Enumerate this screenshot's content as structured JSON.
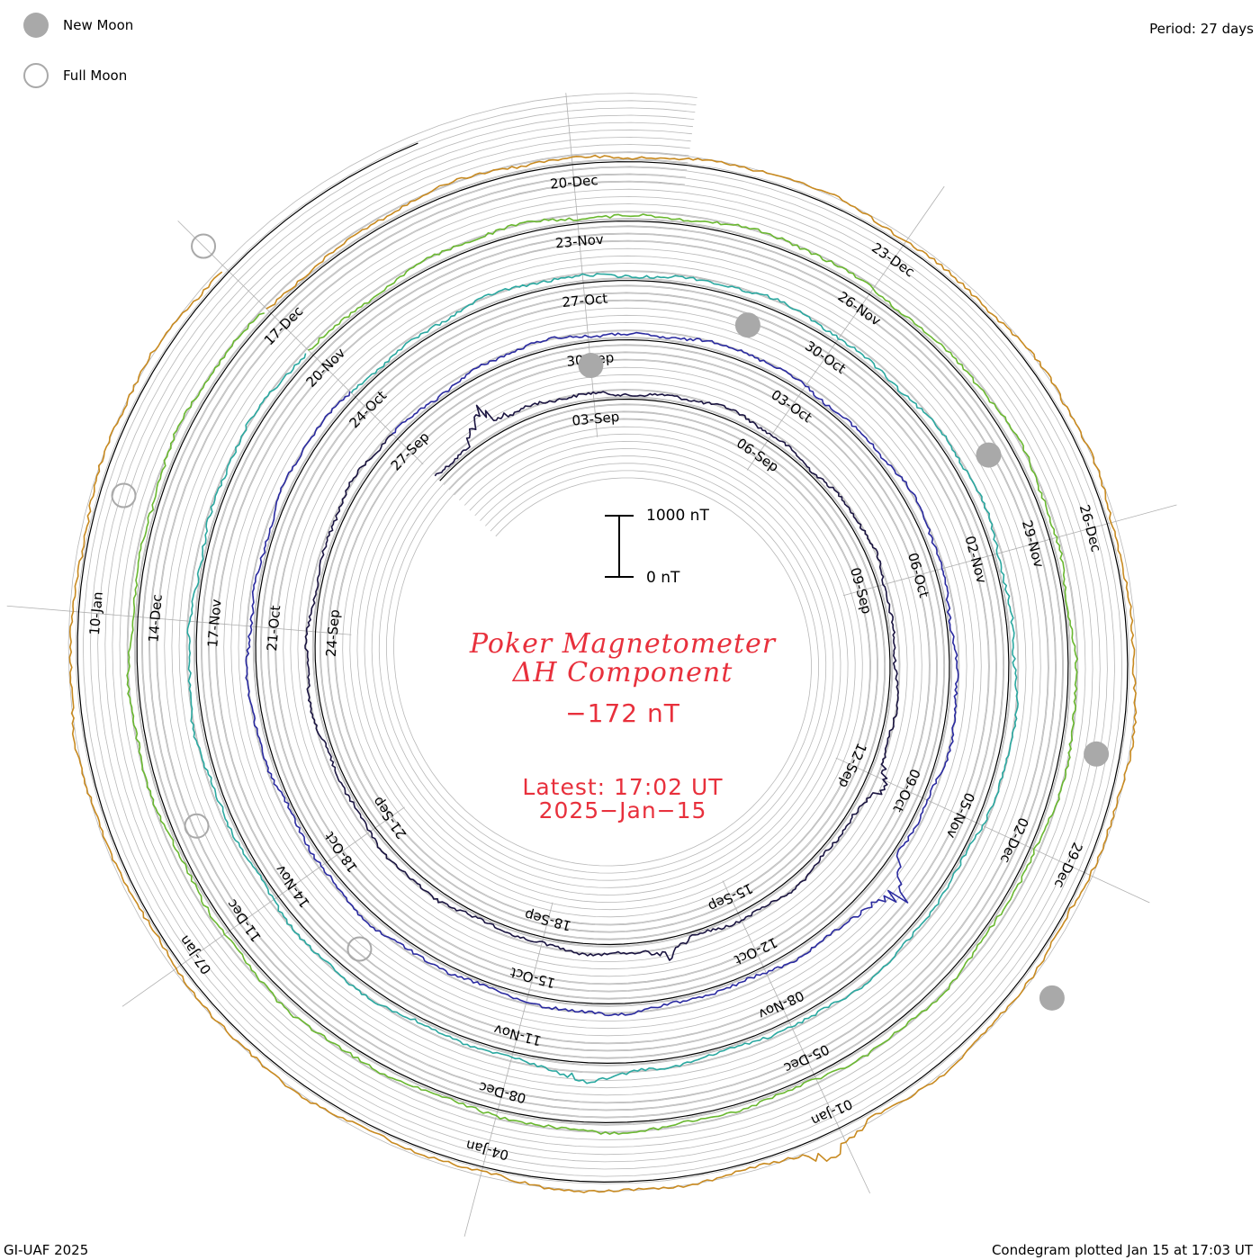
{
  "legend": {
    "new_moon_label": "New Moon",
    "full_moon_label": "Full Moon",
    "new_moon_color": "#a9a9a9",
    "full_moon_color": "#a9a9a9"
  },
  "period_label": "Period: 27 days",
  "title": {
    "line1": "Poker Magnetometer",
    "line2": "ΔH Component",
    "current_value": "−172 nT",
    "latest_label": "Latest: 17:02 UT",
    "latest_date": "2025−Jan−15"
  },
  "scale_bar": {
    "top_label": "1000 nT",
    "bottom_label": "0 nT"
  },
  "footer": {
    "left": "GI-UAF 2025",
    "right": "Condegram plotted Jan 15 at 17:03 UT"
  },
  "colors": {
    "title_red": "#e8303c",
    "grid": "#b0b0b0",
    "moon": "#a9a9a9"
  },
  "chart_data": {
    "type": "line",
    "chart_style": "condegram spiral",
    "period_days": 27,
    "units": "nT",
    "turns": [
      {
        "start": "2024-08-31",
        "color": "#1a1440",
        "date_labels": [
          "03-Sep",
          "06-Sep",
          "09-Sep",
          "12-Sep",
          "15-Sep",
          "18-Sep",
          "21-Sep",
          "24-Sep",
          "27-Sep"
        ]
      },
      {
        "start": "2024-09-27",
        "color": "#2a2aa0",
        "date_labels": [
          "30-Sep",
          "03-Oct",
          "06-Oct",
          "09-Oct",
          "12-Oct",
          "15-Oct",
          "18-Oct",
          "21-Oct",
          "24-Oct"
        ]
      },
      {
        "start": "2024-10-24",
        "color": "#2aa8a0",
        "date_labels": [
          "27-Oct",
          "30-Oct",
          "02-Nov",
          "05-Nov",
          "08-Nov",
          "11-Nov",
          "14-Nov",
          "17-Nov",
          "20-Nov"
        ]
      },
      {
        "start": "2024-11-20",
        "color": "#6ab830",
        "date_labels": [
          "23-Nov",
          "26-Nov",
          "29-Nov",
          "02-Dec",
          "05-Dec",
          "08-Dec",
          "11-Dec",
          "14-Dec",
          "17-Dec"
        ]
      },
      {
        "start": "2024-12-17",
        "color": "#c88a20",
        "date_labels": [
          "20-Dec",
          "23-Dec",
          "26-Dec",
          "29-Dec",
          "01-Jan",
          "04-Jan",
          "07-Jan",
          "10-Jan"
        ]
      }
    ],
    "events": [
      {
        "type": "new moon",
        "date": "2024-09-03"
      },
      {
        "type": "new moon",
        "date": "2024-10-02"
      },
      {
        "type": "new moon",
        "date": "2024-11-01"
      },
      {
        "type": "new moon",
        "date": "2024-12-01"
      },
      {
        "type": "new moon",
        "date": "2024-12-30"
      },
      {
        "type": "full moon",
        "date": "2024-10-17"
      },
      {
        "type": "full moon",
        "date": "2024-11-15"
      },
      {
        "type": "full moon",
        "date": "2024-12-15"
      },
      {
        "type": "full moon",
        "date": "2025-01-13"
      }
    ],
    "storm_events": [
      {
        "date": "2024-09-01",
        "min_nT": -1500
      },
      {
        "date": "2024-09-12",
        "min_nT": -800
      },
      {
        "date": "2024-09-16",
        "min_nT": -700
      },
      {
        "date": "2024-10-10",
        "min_nT": -1500
      },
      {
        "date": "2024-11-10",
        "min_nT": -500
      },
      {
        "date": "2025-01-01",
        "min_nT": -1000
      }
    ],
    "current_value": -172
  }
}
